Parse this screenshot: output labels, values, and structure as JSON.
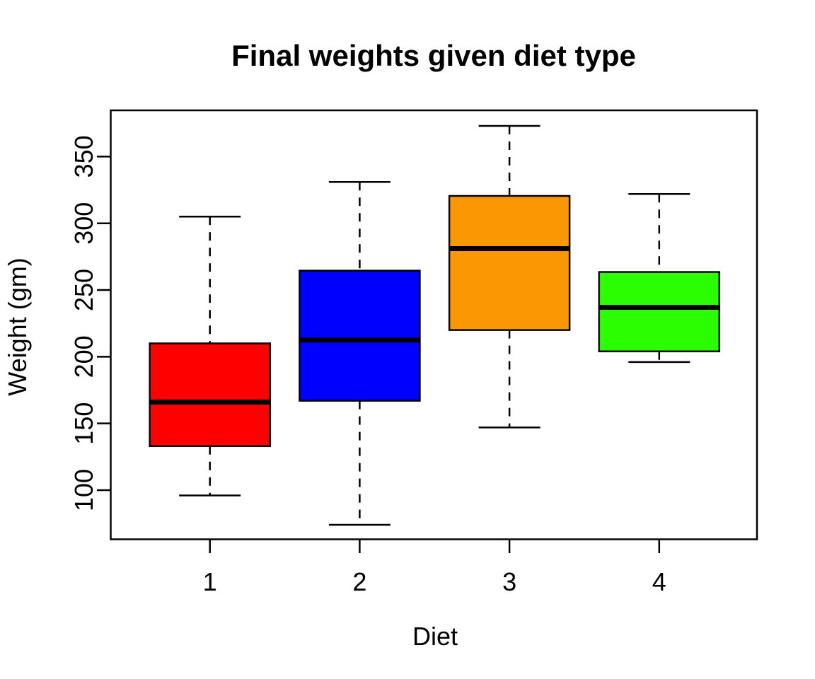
{
  "title": "Final weights given diet type",
  "chart_data": {
    "type": "box",
    "title": "Final weights given diet type",
    "xlabel": "Diet",
    "ylabel": "Weight (gm)",
    "categories": [
      "1",
      "2",
      "3",
      "4"
    ],
    "y_ticks": [
      100,
      150,
      200,
      250,
      300,
      350
    ],
    "ylim": [
      62,
      385
    ],
    "grid": false,
    "legend": "none",
    "background": "#FFFFFF",
    "frame_color": "#000000",
    "series": [
      {
        "name": "Diet 1",
        "category": "1",
        "whisker_low": 96,
        "q1": 133,
        "median": 166,
        "q3": 210,
        "whisker_high": 305,
        "color": "#FF0000"
      },
      {
        "name": "Diet 2",
        "category": "2",
        "whisker_low": 74,
        "q1": 167,
        "median": 212.5,
        "q3": 264.5,
        "whisker_high": 331,
        "color": "#0000FF"
      },
      {
        "name": "Diet 3",
        "category": "3",
        "whisker_low": 147,
        "q1": 220,
        "median": 281,
        "q3": 320.5,
        "whisker_high": 373,
        "color": "#FB9702"
      },
      {
        "name": "Diet 4",
        "category": "4",
        "whisker_low": 196,
        "q1": 204,
        "median": 237,
        "q3": 263.5,
        "whisker_high": 322,
        "color": "#2BFE00"
      }
    ]
  }
}
